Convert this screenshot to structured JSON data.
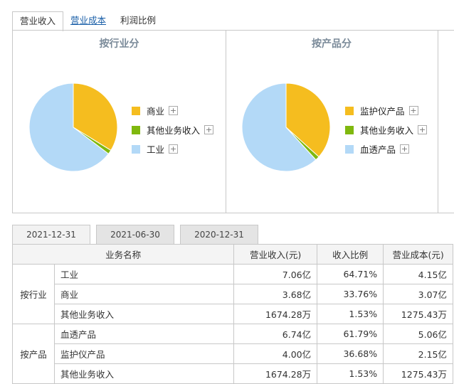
{
  "tabs": [
    "营业收入",
    "营业成本",
    "利润比例"
  ],
  "charts": [
    {
      "title": "按行业分",
      "slices": [
        {
          "label": "商业",
          "value": 33.76,
          "color": "#f5bd1f"
        },
        {
          "label": "其他业务收入",
          "value": 1.53,
          "color": "#7fb80e"
        },
        {
          "label": "工业",
          "value": 64.71,
          "color": "#b3d9f7"
        }
      ]
    },
    {
      "title": "按产品分",
      "slices": [
        {
          "label": "监护仪产品",
          "value": 36.68,
          "color": "#f5bd1f"
        },
        {
          "label": "其他业务收入",
          "value": 1.53,
          "color": "#7fb80e"
        },
        {
          "label": "血透产品",
          "value": 61.79,
          "color": "#b3d9f7"
        }
      ]
    }
  ],
  "plus_symbol": "+",
  "date_tabs": [
    "2021-12-31",
    "2021-06-30",
    "2020-12-31"
  ],
  "table": {
    "headers": [
      "业务名称",
      "营业收入(元)",
      "收入比例",
      "营业成本(元)"
    ],
    "groups": [
      {
        "name": "按行业",
        "rows": [
          [
            "工业",
            "7.06亿",
            "64.71%",
            "4.15亿"
          ],
          [
            "商业",
            "3.68亿",
            "33.76%",
            "3.07亿"
          ],
          [
            "其他业务收入",
            "1674.28万",
            "1.53%",
            "1275.43万"
          ]
        ]
      },
      {
        "name": "按产品",
        "rows": [
          [
            "血透产品",
            "6.74亿",
            "61.79%",
            "5.06亿"
          ],
          [
            "监护仪产品",
            "4.00亿",
            "36.68%",
            "2.15亿"
          ],
          [
            "其他业务收入",
            "1674.28万",
            "1.53%",
            "1275.43万"
          ]
        ]
      }
    ]
  }
}
